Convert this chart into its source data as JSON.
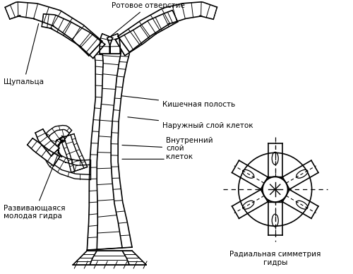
{
  "bg_color": "#ffffff",
  "line_color": "#000000",
  "labels": {
    "rotovoe": "Ротовое отверстие",
    "kishechnaya": "Кишечная полость",
    "naruzhniy": "Наружный слой клеток",
    "vnutrenniy": "Внутренний\nслой\nклеток",
    "shchupalca": "Щупальца",
    "razvivayushchayasya": "Развивающаяся\nмолодая гидра",
    "radialnaya": "Радиальная симметрия\nгидры"
  },
  "fig_width": 5.0,
  "fig_height": 3.88,
  "dpi": 100
}
